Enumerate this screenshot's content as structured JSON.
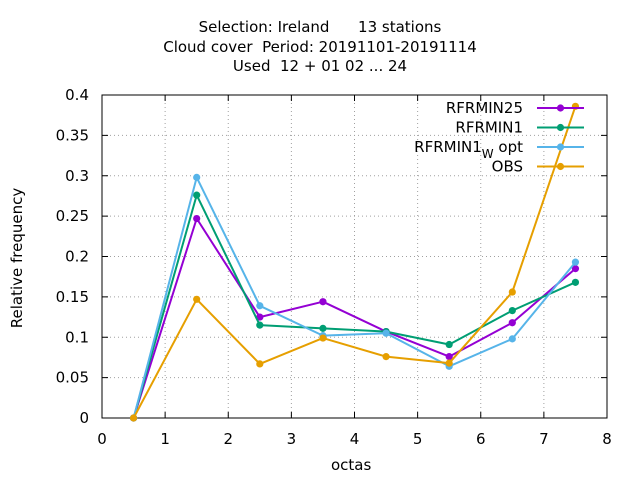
{
  "title": {
    "line1": "Selection: Ireland      13 stations",
    "line2": "Cloud cover  Period: 20191101-20191114",
    "line3": "Used  12 + 01 02 ... 24"
  },
  "chart_data": {
    "type": "line",
    "xlabel": "octas",
    "ylabel": "Relative frequency",
    "xlim": [
      0,
      8
    ],
    "ylim": [
      0,
      0.4
    ],
    "xticks": [
      0,
      1,
      2,
      3,
      4,
      5,
      6,
      7,
      8
    ],
    "yticks": [
      0,
      0.05,
      0.1,
      0.15,
      0.2,
      0.25,
      0.3,
      0.35,
      0.4
    ],
    "xtick_labels": [
      "0",
      "1",
      "2",
      "3",
      "4",
      "5",
      "6",
      "7",
      "8"
    ],
    "ytick_labels": [
      "0",
      "0.05",
      "0.1",
      "0.15",
      "0.2",
      "0.25",
      "0.3",
      "0.35",
      "0.4"
    ],
    "grid": true,
    "legend_position": "top-right",
    "x": [
      0.5,
      1.5,
      2.5,
      3.5,
      4.5,
      5.5,
      6.5,
      7.5
    ],
    "series": [
      {
        "name": "RFRMIN25",
        "color": "#9400d3",
        "values": [
          0,
          0.247,
          0.125,
          0.144,
          0.107,
          0.076,
          0.118,
          0.185
        ]
      },
      {
        "name": "RFRMIN1",
        "color": "#009e73",
        "values": [
          0,
          0.276,
          0.115,
          0.111,
          0.107,
          0.091,
          0.133,
          0.168
        ]
      },
      {
        "name": "RFRMIN1",
        "name_subscript": "W",
        "name_suffix": "opt",
        "color": "#56b4e9",
        "values": [
          0,
          0.298,
          0.139,
          0.102,
          0.105,
          0.064,
          0.098,
          0.193
        ]
      },
      {
        "name": "OBS",
        "color": "#e69f00",
        "values": [
          0,
          0.147,
          0.067,
          0.099,
          0.076,
          0.068,
          0.156,
          0.386
        ]
      }
    ]
  }
}
